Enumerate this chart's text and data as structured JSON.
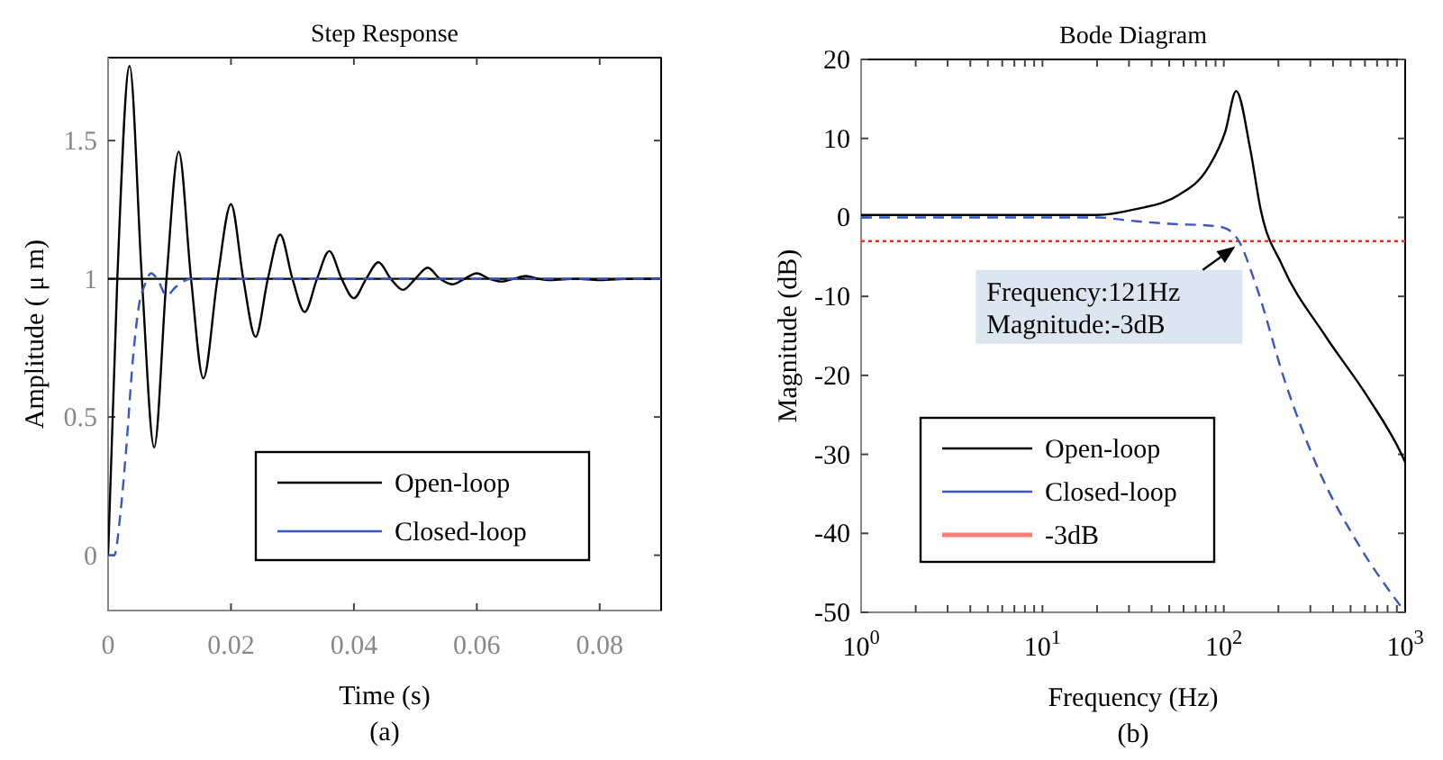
{
  "chart_data": [
    {
      "type": "line",
      "title": "Step Response",
      "xlabel": "Time (s)",
      "ylabel": "Amplitude ( μ m)",
      "xlim": [
        0,
        0.09
      ],
      "ylim": [
        -0.2,
        1.8
      ],
      "xticks": [
        0,
        0.02,
        0.04,
        0.06,
        0.08
      ],
      "yticks": [
        0,
        0.5,
        1,
        1.5
      ],
      "grid": false,
      "legend": "bottom right",
      "annotations": [
        "(a)"
      ],
      "ref_lines": [
        {
          "axis": "y",
          "value": 1,
          "color": "#000000",
          "line_style": "solid"
        }
      ],
      "series": [
        {
          "name": "Open-loop",
          "color": "#000000",
          "line_style": "solid",
          "x": [
            0,
            0.0015,
            0.0035,
            0.0055,
            0.0075,
            0.0095,
            0.0115,
            0.0135,
            0.0155,
            0.0178,
            0.02,
            0.022,
            0.024,
            0.026,
            0.028,
            0.03,
            0.032,
            0.034,
            0.036,
            0.038,
            0.04,
            0.042,
            0.044,
            0.046,
            0.048,
            0.05,
            0.052,
            0.054,
            0.056,
            0.058,
            0.06,
            0.062,
            0.064,
            0.066,
            0.068,
            0.07,
            0.072,
            0.076,
            0.08,
            0.085,
            0.09
          ],
          "values": [
            0,
            1.0,
            1.77,
            1.0,
            0.39,
            1.0,
            1.46,
            1.0,
            0.64,
            1.0,
            1.27,
            1.0,
            0.79,
            1.0,
            1.16,
            1.0,
            0.88,
            1.0,
            1.1,
            1.0,
            0.93,
            1.0,
            1.06,
            1.0,
            0.96,
            1.0,
            1.04,
            1.0,
            0.98,
            1.0,
            1.02,
            1.0,
            0.99,
            1.0,
            1.01,
            1.0,
            0.995,
            1.0,
            0.995,
            1.0,
            1.0
          ]
        },
        {
          "name": "Closed-loop",
          "color": "#3a56c4",
          "line_style": "dashed",
          "x": [
            0,
            0.001,
            0.002,
            0.003,
            0.004,
            0.005,
            0.006,
            0.007,
            0.008,
            0.0095,
            0.011,
            0.0135,
            0.02,
            0.09
          ],
          "values": [
            0,
            0.0,
            0.15,
            0.4,
            0.7,
            0.9,
            0.98,
            1.02,
            1.0,
            0.94,
            0.97,
            1.0,
            1.0,
            1.0
          ]
        }
      ]
    },
    {
      "type": "line",
      "title": "Bode Diagram",
      "xlabel": "Frequency (Hz)",
      "ylabel": "Magnitude (dB)",
      "log": "x",
      "xlim": [
        1,
        1000
      ],
      "ylim": [
        -50,
        20
      ],
      "xticks": [
        {
          "value": 1,
          "label": "10$^{0}$"
        },
        {
          "value": 2,
          "label": null
        },
        {
          "value": 3,
          "label": null
        },
        {
          "value": 4,
          "label": null
        },
        {
          "value": 5,
          "label": null
        },
        {
          "value": 6,
          "label": null
        },
        {
          "value": 7,
          "label": null
        },
        {
          "value": 8,
          "label": null
        },
        {
          "value": 9,
          "label": null
        },
        {
          "value": 10,
          "label": "10$^{1}$"
        },
        {
          "value": 20,
          "label": null
        },
        {
          "value": 30,
          "label": null
        },
        {
          "value": 40,
          "label": null
        },
        {
          "value": 50,
          "label": null
        },
        {
          "value": 60,
          "label": null
        },
        {
          "value": 70,
          "label": null
        },
        {
          "value": 80,
          "label": null
        },
        {
          "value": 90,
          "label": null
        },
        {
          "value": 100,
          "label": "10$^{2}$"
        },
        {
          "value": 200,
          "label": null
        },
        {
          "value": 300,
          "label": null
        },
        {
          "value": 400,
          "label": null
        },
        {
          "value": 500,
          "label": null
        },
        {
          "value": 600,
          "label": null
        },
        {
          "value": 700,
          "label": null
        },
        {
          "value": 800,
          "label": null
        },
        {
          "value": 900,
          "label": null
        },
        {
          "value": 1000,
          "label": "10$^{3}$"
        }
      ],
      "yticks": [
        -50,
        -40,
        -30,
        -20,
        -10,
        0,
        10,
        20
      ],
      "grid": false,
      "legend": "bottom left",
      "annotations": [
        {
          "text": "Frequency:121Hz\nMagnitude:-3dB",
          "x": 121,
          "y": -3
        },
        "(b)"
      ],
      "ref_lines": [
        {
          "axis": "y",
          "value": -3,
          "label": "-3dB",
          "color": "#ff2a1a",
          "line_style": "dotted"
        }
      ],
      "series": [
        {
          "name": "Open-loop",
          "color": "#000000",
          "line_style": "solid",
          "x": [
            1,
            20,
            32,
            57,
            82,
            102,
            117,
            140,
            160,
            209,
            363,
            616,
            955,
            1000
          ],
          "values": [
            0.3,
            0.3,
            1.0,
            2.9,
            6.3,
            10.9,
            16,
            8.6,
            0.9,
            -6,
            -15,
            -22.6,
            -30,
            -31
          ]
        },
        {
          "name": "Closed-loop",
          "color": "#3a56c4",
          "line_style": "dashed",
          "x": [
            1,
            20,
            30,
            50,
            90,
            105,
            121,
            149,
            219,
            340,
            533,
            1000
          ],
          "values": [
            0,
            0,
            -0.4,
            -0.8,
            -1.1,
            -1.5,
            -3,
            -8.3,
            -21,
            -32.4,
            -40.8,
            -50
          ]
        }
      ]
    }
  ]
}
